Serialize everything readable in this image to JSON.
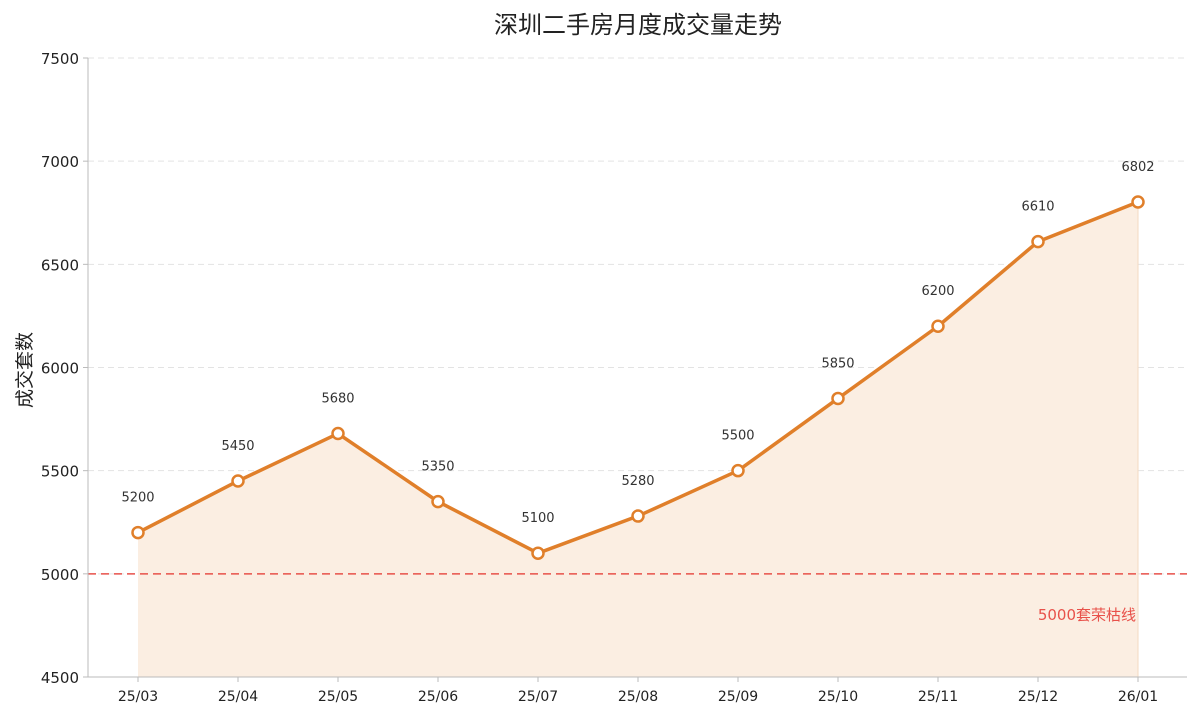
{
  "chart_data": {
    "type": "line",
    "title": "深圳二手房月度成交量走势",
    "xlabel": "",
    "ylabel": "成交套数",
    "categories": [
      "25/03",
      "25/04",
      "25/05",
      "25/06",
      "25/07",
      "25/08",
      "25/09",
      "25/10",
      "25/11",
      "25/12",
      "26/01"
    ],
    "series": [
      {
        "values": [
          5200,
          5450,
          5680,
          5350,
          5100,
          5280,
          5500,
          5850,
          6200,
          6610,
          6802
        ]
      }
    ],
    "ylim": [
      4500,
      7500
    ],
    "yticks": [
      4500,
      5000,
      5500,
      6000,
      6500,
      7000,
      7500
    ],
    "grid": "horizontal-dashed",
    "fill_under_line": true,
    "threshold": {
      "value": 5000,
      "label": "5000套荣枯线",
      "color": "#e8514a"
    },
    "colors": {
      "line": "#e07f2a",
      "fill": "#fbeee2",
      "marker_fill": "#ffffff",
      "grid": "#e3e3e3",
      "axis": "#bbbbbb"
    }
  }
}
